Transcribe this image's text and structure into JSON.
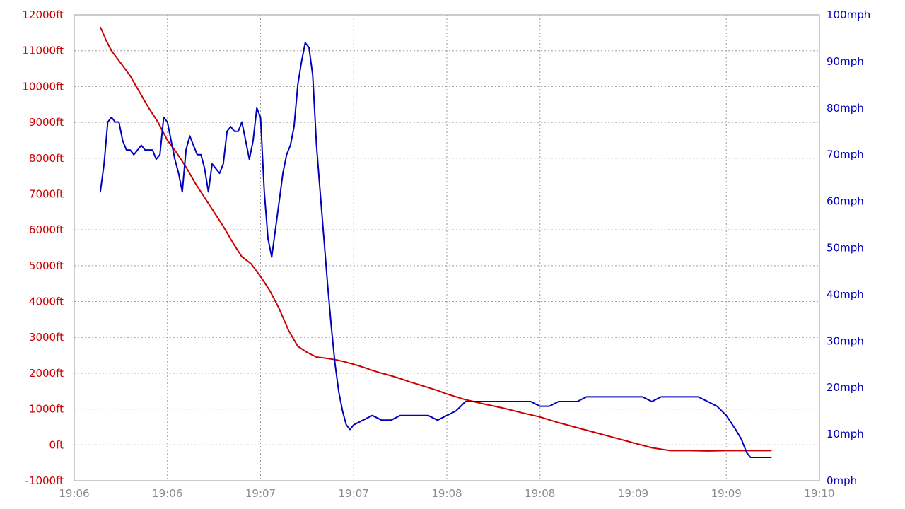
{
  "chart_data": {
    "type": "line",
    "title": "",
    "colors": {
      "altitude": "#cc0000",
      "speed": "#0000bb",
      "axis_text_x": "#8a8a8a",
      "grid": "#9a9a9a"
    },
    "grid": true,
    "x_axis": {
      "unit": "minutes",
      "range": [
        0,
        4
      ],
      "ticks": [
        0,
        0.5,
        1,
        1.5,
        2,
        2.5,
        3,
        3.5,
        4
      ],
      "tick_labels": [
        "19:06",
        "19:06",
        "19:07",
        "19:07",
        "19:08",
        "19:08",
        "19:09",
        "19:09",
        "19:10"
      ]
    },
    "y_left": {
      "range": [
        -1000,
        12000
      ],
      "ticks": [
        -1000,
        0,
        1000,
        2000,
        3000,
        4000,
        5000,
        6000,
        7000,
        8000,
        9000,
        10000,
        11000,
        12000
      ],
      "tick_labels": [
        "-1000ft",
        "0ft",
        "1000ft",
        "2000ft",
        "3000ft",
        "4000ft",
        "5000ft",
        "6000ft",
        "7000ft",
        "8000ft",
        "9000ft",
        "10000ft",
        "11000ft",
        "12000ft"
      ]
    },
    "y_right": {
      "range": [
        0,
        100
      ],
      "ticks": [
        0,
        10,
        20,
        30,
        40,
        50,
        60,
        70,
        80,
        90,
        100
      ],
      "tick_labels": [
        "0mph",
        "10mph",
        "20mph",
        "30mph",
        "40mph",
        "50mph",
        "60mph",
        "70mph",
        "80mph",
        "90mph",
        "100mph"
      ]
    },
    "series": [
      {
        "axis": "left",
        "x": [
          0.14,
          0.15,
          0.17,
          0.2,
          0.25,
          0.3,
          0.35,
          0.4,
          0.45,
          0.5,
          0.55,
          0.6,
          0.65,
          0.7,
          0.75,
          0.8,
          0.85,
          0.9,
          0.95,
          1.0,
          1.05,
          1.1,
          1.15,
          1.2,
          1.25,
          1.3,
          1.35,
          1.4,
          1.45,
          1.5,
          1.55,
          1.6,
          1.65,
          1.7,
          1.75,
          1.8,
          1.85,
          1.9,
          1.95,
          2.0,
          2.1,
          2.2,
          2.3,
          2.4,
          2.5,
          2.6,
          2.7,
          2.8,
          2.9,
          3.0,
          3.1,
          3.2,
          3.3,
          3.4,
          3.5,
          3.6,
          3.65,
          3.7,
          3.74
        ],
        "values": [
          11650,
          11550,
          11300,
          11000,
          10650,
          10300,
          9850,
          9400,
          9000,
          8500,
          8150,
          7750,
          7300,
          6900,
          6500,
          6100,
          5650,
          5250,
          5050,
          4700,
          4300,
          3800,
          3200,
          2750,
          2580,
          2450,
          2420,
          2380,
          2320,
          2250,
          2170,
          2080,
          2000,
          1930,
          1850,
          1760,
          1680,
          1600,
          1520,
          1420,
          1260,
          1140,
          1030,
          900,
          780,
          620,
          480,
          340,
          200,
          60,
          -80,
          -160,
          -160,
          -170,
          -160,
          -160,
          -160,
          -160,
          -160
        ]
      },
      {
        "axis": "right",
        "x": [
          0.14,
          0.16,
          0.18,
          0.2,
          0.22,
          0.24,
          0.26,
          0.28,
          0.3,
          0.32,
          0.34,
          0.36,
          0.38,
          0.4,
          0.42,
          0.44,
          0.46,
          0.48,
          0.5,
          0.52,
          0.54,
          0.56,
          0.58,
          0.6,
          0.62,
          0.64,
          0.66,
          0.68,
          0.7,
          0.72,
          0.74,
          0.76,
          0.78,
          0.8,
          0.82,
          0.84,
          0.86,
          0.88,
          0.9,
          0.92,
          0.94,
          0.96,
          0.98,
          1.0,
          1.02,
          1.04,
          1.06,
          1.08,
          1.1,
          1.12,
          1.14,
          1.16,
          1.18,
          1.2,
          1.22,
          1.24,
          1.26,
          1.28,
          1.3,
          1.32,
          1.34,
          1.36,
          1.38,
          1.4,
          1.42,
          1.44,
          1.46,
          1.48,
          1.5,
          1.55,
          1.6,
          1.65,
          1.7,
          1.75,
          1.8,
          1.85,
          1.9,
          1.95,
          2.0,
          2.05,
          2.1,
          2.15,
          2.2,
          2.25,
          2.3,
          2.35,
          2.4,
          2.45,
          2.5,
          2.55,
          2.6,
          2.65,
          2.7,
          2.75,
          2.8,
          2.85,
          2.9,
          2.95,
          3.0,
          3.05,
          3.1,
          3.15,
          3.2,
          3.25,
          3.3,
          3.35,
          3.4,
          3.45,
          3.5,
          3.55,
          3.58,
          3.61,
          3.63,
          3.66,
          3.68,
          3.7,
          3.72,
          3.74
        ],
        "values": [
          62,
          68,
          77,
          78,
          77,
          77,
          73,
          71,
          71,
          70,
          71,
          72,
          71,
          71,
          71,
          69,
          70,
          78,
          77,
          73,
          69,
          66,
          62,
          71,
          74,
          72,
          70,
          70,
          67,
          62,
          68,
          67,
          66,
          68,
          75,
          76,
          75,
          75,
          77,
          73,
          69,
          73,
          80,
          78,
          62,
          52,
          48,
          54,
          60,
          66,
          70,
          72,
          76,
          85,
          90,
          94,
          93,
          87,
          72,
          62,
          52,
          42,
          33,
          25,
          19,
          15,
          12,
          11,
          12,
          13,
          14,
          13,
          13,
          14,
          14,
          14,
          14,
          13,
          14,
          15,
          17,
          17,
          17,
          17,
          17,
          17,
          17,
          17,
          16,
          16,
          17,
          17,
          17,
          18,
          18,
          18,
          18,
          18,
          18,
          18,
          17,
          18,
          18,
          18,
          18,
          18,
          17,
          16,
          14,
          11,
          9,
          6,
          5,
          5,
          5,
          5,
          5,
          5
        ]
      }
    ]
  }
}
